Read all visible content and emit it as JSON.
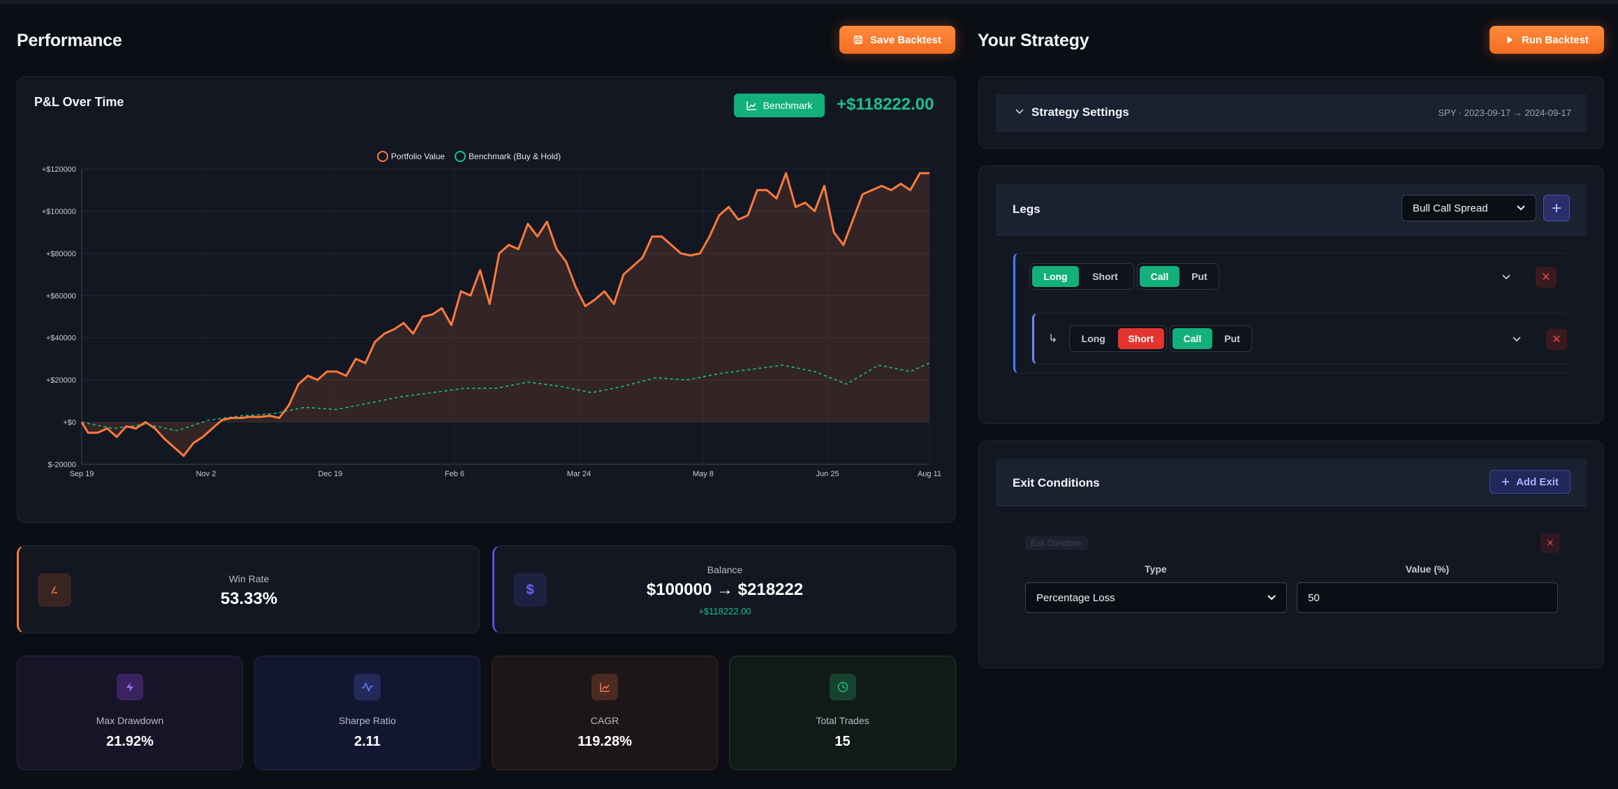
{
  "performance": {
    "title": "Performance",
    "save_button": "Save Backtest"
  },
  "chart_card": {
    "title": "P&L Over Time",
    "benchmark_button": "Benchmark",
    "total_pnl": "+$118222.00"
  },
  "chart_data": {
    "type": "line",
    "title": "P&L Over Time",
    "xlabel": "",
    "ylabel": "",
    "y_ticks": [
      "+$120000",
      "+$100000",
      "+$80000",
      "+$60000",
      "+$40000",
      "+$20000",
      "+$0",
      "$-20000"
    ],
    "x_ticks": [
      "Sep 19",
      "Nov 2",
      "Dec 19",
      "Feb 6",
      "Mar 24",
      "May 8",
      "Jun 25",
      "Aug 11"
    ],
    "ylim": [
      -20000,
      120000
    ],
    "grid": true,
    "legend_position": "top",
    "series": [
      {
        "name": "Portfolio Value",
        "color": "#ff7a3d",
        "style": "solid-filled",
        "points": [
          [
            0,
            0
          ],
          [
            2,
            -5000
          ],
          [
            5,
            -5000
          ],
          [
            8,
            -3000
          ],
          [
            11,
            -7000
          ],
          [
            14,
            -2000
          ],
          [
            17,
            -3000
          ],
          [
            20,
            0
          ],
          [
            23,
            -3000
          ],
          [
            26,
            -8000
          ],
          [
            29,
            -12000
          ],
          [
            32,
            -16000
          ],
          [
            35,
            -10000
          ],
          [
            38,
            -7000
          ],
          [
            41,
            -3000
          ],
          [
            44,
            1000
          ],
          [
            47,
            2000
          ],
          [
            50,
            2000
          ],
          [
            53,
            2500
          ],
          [
            56,
            2500
          ],
          [
            59,
            3000
          ],
          [
            62,
            2000
          ],
          [
            65,
            8000
          ],
          [
            68,
            18000
          ],
          [
            71,
            22000
          ],
          [
            74,
            20000
          ],
          [
            77,
            24000
          ],
          [
            80,
            24000
          ],
          [
            83,
            22000
          ],
          [
            86,
            30000
          ],
          [
            89,
            28000
          ],
          [
            92,
            38000
          ],
          [
            95,
            42000
          ],
          [
            98,
            44000
          ],
          [
            101,
            47000
          ],
          [
            104,
            42000
          ],
          [
            107,
            50000
          ],
          [
            110,
            51000
          ],
          [
            113,
            54000
          ],
          [
            116,
            46000
          ],
          [
            119,
            62000
          ],
          [
            122,
            60000
          ],
          [
            125,
            72000
          ],
          [
            128,
            56000
          ],
          [
            131,
            80000
          ],
          [
            134,
            84000
          ],
          [
            137,
            82000
          ],
          [
            140,
            94000
          ],
          [
            143,
            88000
          ],
          [
            146,
            95000
          ],
          [
            149,
            82000
          ],
          [
            152,
            76000
          ],
          [
            155,
            64000
          ],
          [
            158,
            55000
          ],
          [
            161,
            58000
          ],
          [
            164,
            62000
          ],
          [
            167,
            56000
          ],
          [
            170,
            70000
          ],
          [
            173,
            74000
          ],
          [
            176,
            78000
          ],
          [
            179,
            88000
          ],
          [
            182,
            88000
          ],
          [
            185,
            84000
          ],
          [
            188,
            80000
          ],
          [
            191,
            79000
          ],
          [
            194,
            80000
          ],
          [
            197,
            88000
          ],
          [
            200,
            98000
          ],
          [
            203,
            102000
          ],
          [
            206,
            96000
          ],
          [
            209,
            98000
          ],
          [
            212,
            110000
          ],
          [
            215,
            110000
          ],
          [
            218,
            106000
          ],
          [
            221,
            118000
          ],
          [
            224,
            102000
          ],
          [
            227,
            104000
          ],
          [
            230,
            100000
          ],
          [
            233,
            112000
          ],
          [
            236,
            90000
          ],
          [
            239,
            84000
          ],
          [
            242,
            96000
          ],
          [
            245,
            108000
          ],
          [
            248,
            110000
          ],
          [
            251,
            112000
          ],
          [
            254,
            110000
          ],
          [
            257,
            113000
          ],
          [
            260,
            110000
          ],
          [
            263,
            118000
          ],
          [
            266,
            118000
          ]
        ]
      },
      {
        "name": "Benchmark (Buy & Hold)",
        "color": "#19c28a",
        "style": "dashed",
        "points": [
          [
            0,
            0
          ],
          [
            10,
            -3000
          ],
          [
            20,
            -1000
          ],
          [
            30,
            -4000
          ],
          [
            40,
            1000
          ],
          [
            50,
            3000
          ],
          [
            60,
            4000
          ],
          [
            70,
            7000
          ],
          [
            80,
            6000
          ],
          [
            90,
            9000
          ],
          [
            100,
            12000
          ],
          [
            110,
            14000
          ],
          [
            120,
            16000
          ],
          [
            130,
            16000
          ],
          [
            140,
            19000
          ],
          [
            150,
            17000
          ],
          [
            160,
            14000
          ],
          [
            170,
            17000
          ],
          [
            180,
            21000
          ],
          [
            190,
            20000
          ],
          [
            200,
            23000
          ],
          [
            210,
            25000
          ],
          [
            220,
            27000
          ],
          [
            230,
            24000
          ],
          [
            240,
            18000
          ],
          [
            250,
            27000
          ],
          [
            260,
            24000
          ],
          [
            266,
            28000
          ]
        ]
      }
    ]
  },
  "stats": {
    "win_rate": {
      "label": "Win Rate",
      "value": "53.33%"
    },
    "balance": {
      "label": "Balance",
      "value": "$100000 → $218222",
      "sub": "+$118222.00"
    },
    "max_drawdown": {
      "label": "Max Drawdown",
      "value": "21.92%"
    },
    "sharpe": {
      "label": "Sharpe Ratio",
      "value": "2.11"
    },
    "cagr": {
      "label": "CAGR",
      "value": "119.28%"
    },
    "total_trades": {
      "label": "Total Trades",
      "value": "15"
    }
  },
  "strategy": {
    "title": "Your Strategy",
    "run_button": "Run Backtest",
    "settings_label": "Strategy Settings",
    "settings_summary": "SPY · 2023-09-17 → 2024-09-17",
    "legs_title": "Legs",
    "leg_preset": "Bull Call Spread",
    "leg1": {
      "long": "Long",
      "short": "Short",
      "call": "Call",
      "put": "Put",
      "side": "Long",
      "type": "Call"
    },
    "leg2": {
      "long": "Long",
      "short": "Short",
      "call": "Call",
      "put": "Put",
      "side": "Short",
      "type": "Call"
    },
    "exit_title": "Exit Conditions",
    "add_exit": "Add Exit",
    "exit_badge": "Exit Condition",
    "type_label": "Type",
    "value_label": "Value (%)",
    "type_value": "Percentage Loss",
    "value_value": "50"
  }
}
